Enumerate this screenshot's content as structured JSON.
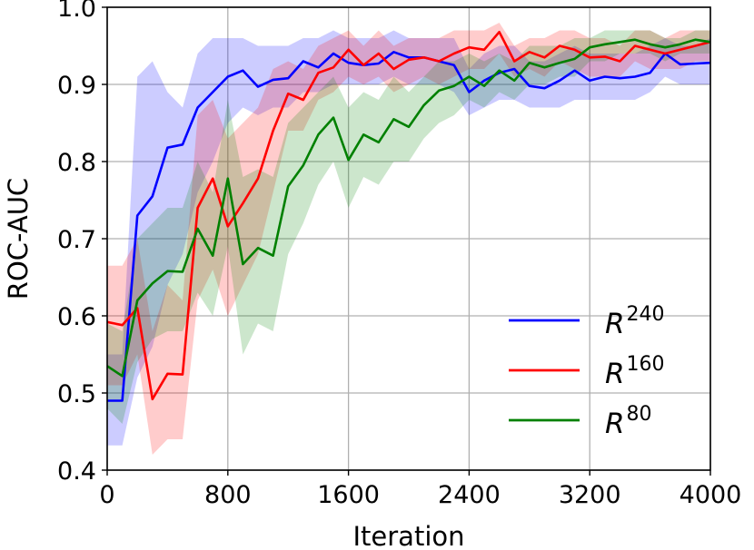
{
  "chart_data": {
    "type": "line",
    "xlabel": "Iteration",
    "ylabel": "ROC-AUC",
    "xlim": [
      0,
      4000
    ],
    "ylim": [
      0.4,
      1.0
    ],
    "x_ticks": [
      "0",
      "800",
      "1600",
      "2400",
      "3200",
      "4000"
    ],
    "y_ticks": [
      "0.4",
      "0.5",
      "0.6",
      "0.7",
      "0.8",
      "0.9",
      "1.0"
    ],
    "grid": true,
    "legend_position": "lower-right",
    "x": [
      0,
      100,
      200,
      300,
      400,
      500,
      600,
      700,
      800,
      900,
      1000,
      1100,
      1200,
      1300,
      1400,
      1500,
      1600,
      1700,
      1800,
      1900,
      2000,
      2100,
      2200,
      2300,
      2400,
      2500,
      2600,
      2700,
      2800,
      2900,
      3000,
      3100,
      3200,
      3300,
      3400,
      3500,
      3600,
      3700,
      3800,
      3900,
      4000
    ],
    "series": [
      {
        "name": "240",
        "legend_base": "R",
        "legend_sup": "240",
        "color": "#0000ff",
        "band_color": "#0000ff",
        "values": [
          0.49,
          0.49,
          0.73,
          0.755,
          0.818,
          0.822,
          0.87,
          0.89,
          0.91,
          0.918,
          0.897,
          0.906,
          0.908,
          0.93,
          0.922,
          0.94,
          0.928,
          0.925,
          0.927,
          0.942,
          0.935,
          0.935,
          0.93,
          0.925,
          0.89,
          0.905,
          0.915,
          0.92,
          0.898,
          0.895,
          0.905,
          0.918,
          0.905,
          0.91,
          0.908,
          0.91,
          0.915,
          0.94,
          0.926,
          0.927,
          0.928
        ],
        "lower": [
          0.432,
          0.432,
          0.52,
          0.56,
          0.64,
          0.68,
          0.76,
          0.8,
          0.85,
          0.87,
          0.86,
          0.87,
          0.87,
          0.89,
          0.89,
          0.9,
          0.9,
          0.9,
          0.9,
          0.91,
          0.9,
          0.9,
          0.9,
          0.89,
          0.86,
          0.87,
          0.88,
          0.88,
          0.87,
          0.87,
          0.87,
          0.88,
          0.88,
          0.88,
          0.88,
          0.88,
          0.89,
          0.91,
          0.9,
          0.9,
          0.9
        ],
        "upper": [
          0.55,
          0.55,
          0.91,
          0.93,
          0.89,
          0.87,
          0.94,
          0.96,
          0.96,
          0.96,
          0.95,
          0.95,
          0.95,
          0.96,
          0.96,
          0.97,
          0.96,
          0.96,
          0.96,
          0.97,
          0.96,
          0.96,
          0.96,
          0.96,
          0.92,
          0.94,
          0.95,
          0.95,
          0.93,
          0.93,
          0.94,
          0.95,
          0.94,
          0.94,
          0.94,
          0.94,
          0.95,
          0.96,
          0.95,
          0.95,
          0.96
        ]
      },
      {
        "name": "160",
        "legend_base": "R",
        "legend_sup": "160",
        "color": "#ff0000",
        "band_color": "#ff0000",
        "values": [
          0.592,
          0.588,
          0.61,
          0.492,
          0.525,
          0.524,
          0.74,
          0.778,
          0.716,
          0.746,
          0.778,
          0.84,
          0.888,
          0.88,
          0.915,
          0.922,
          0.945,
          0.925,
          0.94,
          0.92,
          0.932,
          0.935,
          0.93,
          0.94,
          0.948,
          0.945,
          0.968,
          0.93,
          0.942,
          0.935,
          0.95,
          0.945,
          0.935,
          0.936,
          0.93,
          0.95,
          0.945,
          0.94,
          0.945,
          0.95,
          0.955
        ],
        "lower": [
          0.51,
          0.51,
          0.55,
          0.42,
          0.44,
          0.44,
          0.62,
          0.66,
          0.6,
          0.64,
          0.68,
          0.76,
          0.84,
          0.84,
          0.88,
          0.89,
          0.91,
          0.9,
          0.91,
          0.89,
          0.9,
          0.91,
          0.9,
          0.91,
          0.92,
          0.92,
          0.94,
          0.91,
          0.92,
          0.91,
          0.93,
          0.92,
          0.91,
          0.91,
          0.91,
          0.93,
          0.92,
          0.92,
          0.92,
          0.93,
          0.93
        ],
        "upper": [
          0.665,
          0.665,
          0.7,
          0.58,
          0.64,
          0.62,
          0.86,
          0.88,
          0.83,
          0.85,
          0.87,
          0.92,
          0.93,
          0.92,
          0.95,
          0.96,
          0.97,
          0.95,
          0.97,
          0.95,
          0.96,
          0.96,
          0.96,
          0.97,
          0.97,
          0.97,
          0.98,
          0.95,
          0.96,
          0.96,
          0.97,
          0.97,
          0.96,
          0.96,
          0.95,
          0.97,
          0.97,
          0.96,
          0.97,
          0.97,
          0.97
        ]
      },
      {
        "name": "80",
        "legend_base": "R",
        "legend_sup": "80",
        "color": "#008000",
        "band_color": "#008000",
        "values": [
          0.535,
          0.522,
          0.62,
          0.642,
          0.658,
          0.657,
          0.713,
          0.678,
          0.778,
          0.667,
          0.688,
          0.678,
          0.768,
          0.795,
          0.835,
          0.857,
          0.802,
          0.835,
          0.825,
          0.855,
          0.845,
          0.873,
          0.892,
          0.898,
          0.91,
          0.898,
          0.918,
          0.905,
          0.928,
          0.922,
          0.928,
          0.933,
          0.948,
          0.952,
          0.955,
          0.958,
          0.952,
          0.948,
          0.952,
          0.958,
          0.955
        ],
        "lower": [
          0.48,
          0.46,
          0.54,
          0.57,
          0.58,
          0.58,
          0.63,
          0.6,
          0.69,
          0.55,
          0.59,
          0.58,
          0.68,
          0.72,
          0.77,
          0.8,
          0.74,
          0.78,
          0.77,
          0.8,
          0.8,
          0.83,
          0.85,
          0.86,
          0.88,
          0.87,
          0.89,
          0.88,
          0.9,
          0.9,
          0.91,
          0.91,
          0.93,
          0.93,
          0.94,
          0.94,
          0.94,
          0.93,
          0.94,
          0.94,
          0.94
        ],
        "upper": [
          0.59,
          0.58,
          0.7,
          0.72,
          0.74,
          0.74,
          0.8,
          0.76,
          0.88,
          0.78,
          0.79,
          0.78,
          0.85,
          0.87,
          0.89,
          0.91,
          0.87,
          0.89,
          0.88,
          0.91,
          0.89,
          0.91,
          0.93,
          0.93,
          0.94,
          0.93,
          0.94,
          0.93,
          0.95,
          0.95,
          0.95,
          0.96,
          0.96,
          0.97,
          0.97,
          0.97,
          0.97,
          0.96,
          0.96,
          0.97,
          0.97
        ]
      }
    ]
  }
}
